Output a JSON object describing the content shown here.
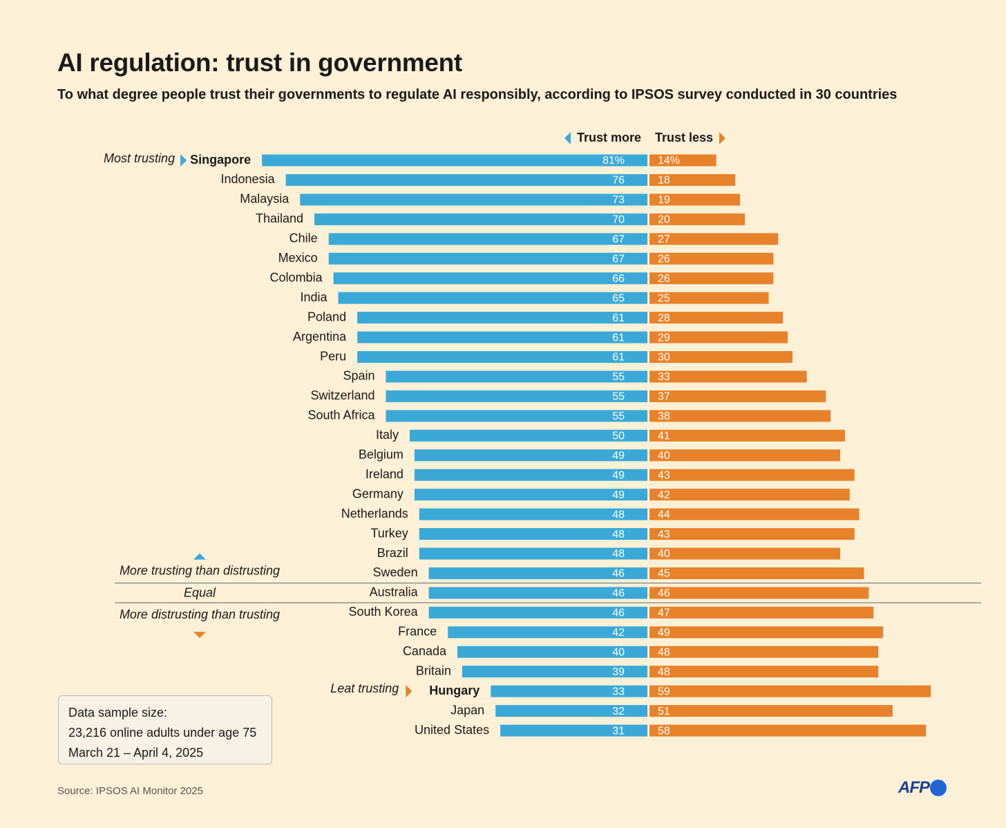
{
  "title": "AI regulation: trust in government",
  "subtitle": "To what degree people trust their governments to regulate AI responsibly, according to IPSOS survey conducted in 30 countries",
  "source": "Source: IPSOS AI Monitor 2025",
  "logo": "AFP",
  "sample": {
    "line1": "Data sample size:",
    "line2": "23,216 online adults under age 75",
    "line3": "March 21 – April 4, 2025"
  },
  "colors": {
    "trust_more": "#3aa9d8",
    "trust_less": "#e8822a",
    "background": "#fcf0d6"
  },
  "chart_data": {
    "type": "bar",
    "orientation": "horizontal-diverging",
    "title": "AI regulation: trust in government",
    "unit": "%",
    "legend": {
      "trust_more": "Trust more",
      "trust_less": "Trust less"
    },
    "categories": [
      "Singapore",
      "Indonesia",
      "Malaysia",
      "Thailand",
      "Chile",
      "Mexico",
      "Colombia",
      "India",
      "Poland",
      "Argentina",
      "Peru",
      "Spain",
      "Switzerland",
      "South Africa",
      "Italy",
      "Belgium",
      "Ireland",
      "Germany",
      "Netherlands",
      "Turkey",
      "Brazil",
      "Sweden",
      "Australia",
      "South Korea",
      "France",
      "Canada",
      "Britain",
      "Hungary",
      "Japan",
      "United States"
    ],
    "series": [
      {
        "name": "Trust more",
        "values": [
          81,
          76,
          73,
          70,
          67,
          67,
          66,
          65,
          61,
          61,
          61,
          55,
          55,
          55,
          50,
          49,
          49,
          49,
          48,
          48,
          48,
          46,
          46,
          46,
          42,
          40,
          39,
          33,
          32,
          31
        ]
      },
      {
        "name": "Trust less",
        "values": [
          14,
          18,
          19,
          20,
          27,
          26,
          26,
          25,
          28,
          29,
          30,
          33,
          37,
          38,
          41,
          40,
          43,
          42,
          44,
          43,
          40,
          45,
          46,
          47,
          49,
          48,
          48,
          59,
          51,
          58
        ]
      }
    ],
    "value_labels": {
      "first_trust_more": "81%",
      "first_trust_less": "14%"
    },
    "annotations": {
      "most_trusting": {
        "label": "Most trusting",
        "country": "Singapore"
      },
      "least_trusting": {
        "label": "Leat trusting",
        "country": "Hungary"
      },
      "groups": {
        "more_trusting": "More trusting than distrusting",
        "equal": "Equal",
        "more_distrusting": "More distrusting than trusting"
      }
    }
  }
}
